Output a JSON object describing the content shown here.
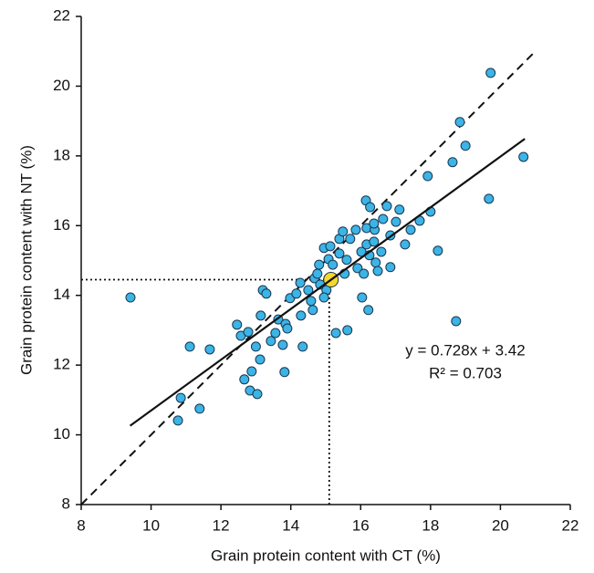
{
  "chart_data": {
    "type": "scatter",
    "x_label": "Grain protein content  with CT (%)",
    "y_label": "Grain protein content with NT (%)",
    "xlim": [
      8,
      22
    ],
    "ylim": [
      8,
      22
    ],
    "xticks": [
      8,
      10,
      12,
      14,
      16,
      18,
      20,
      22
    ],
    "yticks": [
      8,
      10,
      12,
      14,
      16,
      18,
      20,
      22
    ],
    "grid": false,
    "series": [
      {
        "color": "#3cb4e5",
        "x": [
          9.41,
          11.11,
          11.68,
          10.85,
          10.77,
          11.39,
          12.46,
          12.57,
          12.78,
          12.67,
          12.83,
          13.04,
          12.88,
          13.12,
          13.0,
          13.14,
          13.2,
          13.3,
          13.43,
          13.56,
          13.64,
          13.85,
          13.77,
          13.9,
          13.82,
          13.98,
          14.16,
          14.27,
          14.29,
          14.34,
          14.5,
          14.58,
          14.63,
          14.68,
          14.76,
          14.84,
          14.81,
          14.95,
          15.02,
          14.95,
          15.08,
          15.08,
          15.13,
          15.2,
          15.29,
          15.39,
          15.39,
          15.49,
          15.54,
          15.6,
          15.62,
          15.7,
          15.86,
          15.91,
          16.02,
          16.04,
          16.09,
          16.17,
          16.17,
          16.15,
          16.22,
          16.25,
          16.27,
          16.38,
          16.4,
          16.43,
          16.49,
          16.38,
          16.59,
          16.64,
          16.75,
          16.85,
          16.85,
          17.01,
          17.11,
          17.27,
          17.43,
          17.69,
          17.92,
          18.0,
          18.21,
          18.73,
          18.63,
          18.84,
          19.0,
          19.67,
          19.72,
          20.66
        ],
        "y": [
          13.94,
          12.53,
          12.45,
          11.06,
          10.41,
          10.75,
          13.16,
          12.84,
          12.95,
          11.59,
          11.27,
          11.17,
          11.82,
          12.16,
          12.53,
          13.42,
          14.15,
          14.05,
          12.69,
          12.92,
          13.31,
          13.18,
          12.58,
          13.05,
          11.8,
          13.92,
          14.05,
          14.36,
          13.42,
          12.53,
          14.15,
          13.84,
          13.58,
          14.49,
          14.62,
          14.31,
          14.88,
          15.36,
          14.15,
          13.94,
          14.49,
          15.04,
          15.41,
          14.88,
          12.92,
          15.2,
          15.62,
          15.83,
          14.62,
          15.02,
          13.0,
          15.62,
          15.88,
          14.78,
          15.25,
          13.94,
          14.62,
          15.46,
          15.93,
          16.72,
          13.58,
          15.15,
          16.53,
          15.54,
          15.88,
          14.94,
          14.7,
          16.06,
          15.25,
          16.19,
          16.56,
          15.72,
          14.81,
          16.11,
          16.46,
          15.46,
          15.88,
          16.14,
          17.42,
          16.4,
          15.28,
          13.26,
          17.82,
          18.97,
          18.29,
          16.77,
          20.38,
          17.97
        ]
      },
      {
        "color": "#f5d829",
        "x": [
          15.15
        ],
        "y": [
          14.45
        ]
      }
    ],
    "fit_line": {
      "x": [
        9.4,
        20.7
      ],
      "y": [
        10.26,
        18.49
      ]
    },
    "identity_line": {
      "x": [
        8,
        21
      ],
      "y": [
        8,
        21
      ]
    },
    "reference": {
      "x": 15.1,
      "y": 14.45
    },
    "annotations": [
      "y = 0.728x + 3.42",
      "R² = 0.703"
    ]
  }
}
